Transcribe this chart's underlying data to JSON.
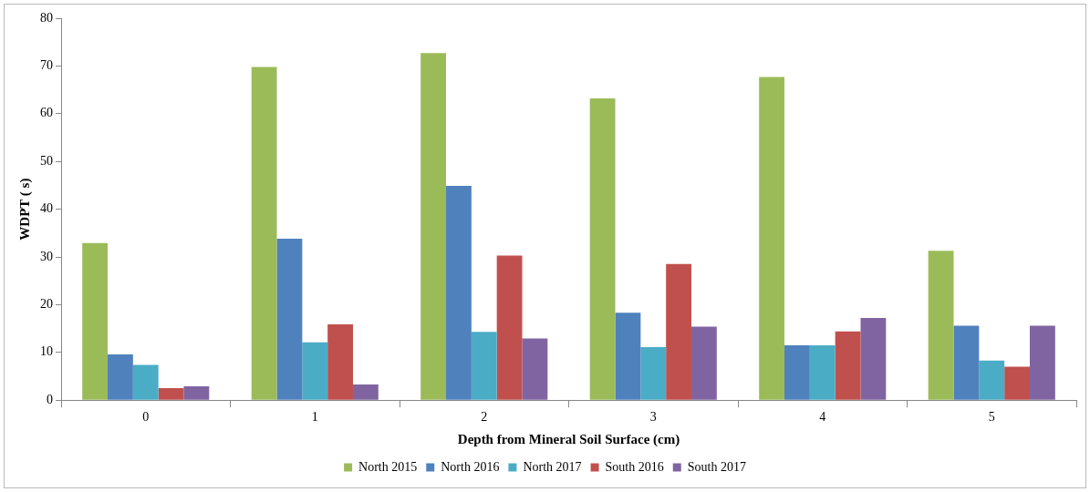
{
  "chart_data": {
    "type": "bar",
    "xlabel": "Depth from Mineral Soil Surface (cm)",
    "ylabel": "WDPT ( s)",
    "categories": [
      "0",
      "1",
      "2",
      "3",
      "4",
      "5"
    ],
    "series": [
      {
        "name": "North 2015",
        "color": "#9bbb59",
        "values": [
          32.9,
          69.8,
          72.7,
          63.2,
          67.7,
          31.3
        ]
      },
      {
        "name": "North 2016",
        "color": "#4f81bd",
        "values": [
          9.6,
          33.8,
          44.9,
          18.3,
          11.5,
          15.6
        ]
      },
      {
        "name": "North 2017",
        "color": "#4bacc6",
        "values": [
          7.4,
          12.1,
          14.3,
          11.1,
          11.5,
          8.3
        ]
      },
      {
        "name": "South 2016",
        "color": "#c0504d",
        "values": [
          2.5,
          15.9,
          30.3,
          28.5,
          14.4,
          7.0
        ]
      },
      {
        "name": "South 2017",
        "color": "#8064a2",
        "values": [
          2.9,
          3.3,
          12.9,
          15.4,
          17.2,
          15.6
        ]
      }
    ],
    "ylim": [
      0,
      80
    ],
    "yticks": [
      0,
      10,
      20,
      30,
      40,
      50,
      60,
      70,
      80
    ],
    "grid": false,
    "legend": "bottom"
  }
}
